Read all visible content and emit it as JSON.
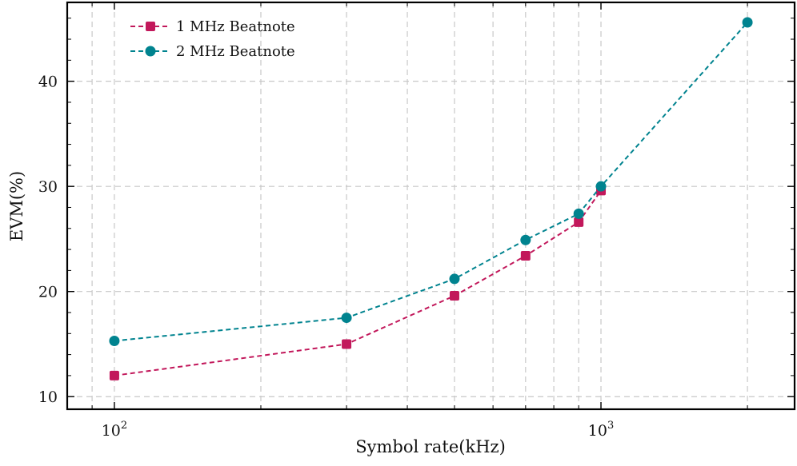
{
  "chart_data": {
    "type": "line",
    "xlabel": "Symbol rate(kHz)",
    "ylabel": "EVM(%)",
    "xscale": "log",
    "xlim": [
      80,
      2500
    ],
    "ylim": [
      8.8,
      47.5
    ],
    "x_ticks_major": [
      {
        "value": 100,
        "base": "10",
        "exp": "2"
      },
      {
        "value": 1000,
        "base": "10",
        "exp": "3"
      }
    ],
    "x_ticks_minor": [
      80,
      90,
      200,
      300,
      400,
      500,
      600,
      700,
      800,
      900,
      2000
    ],
    "y_ticks": [
      10,
      20,
      30,
      40
    ],
    "grid": true,
    "legend_position": "top-left",
    "colors": {
      "series_1": "#c2185b",
      "series_2": "#00838f"
    },
    "series": [
      {
        "name": "1 MHz Beatnote",
        "marker": "square",
        "color": "#c2185b",
        "x": [
          100,
          300,
          500,
          700,
          900,
          1000
        ],
        "values": [
          12.0,
          15.0,
          19.6,
          23.4,
          26.6,
          29.6
        ]
      },
      {
        "name": "2 MHz Beatnote",
        "marker": "circle",
        "color": "#00838f",
        "x": [
          100,
          300,
          500,
          700,
          900,
          1000,
          2000
        ],
        "values": [
          15.3,
          17.5,
          21.2,
          24.9,
          27.4,
          30.0,
          45.6
        ]
      }
    ]
  }
}
